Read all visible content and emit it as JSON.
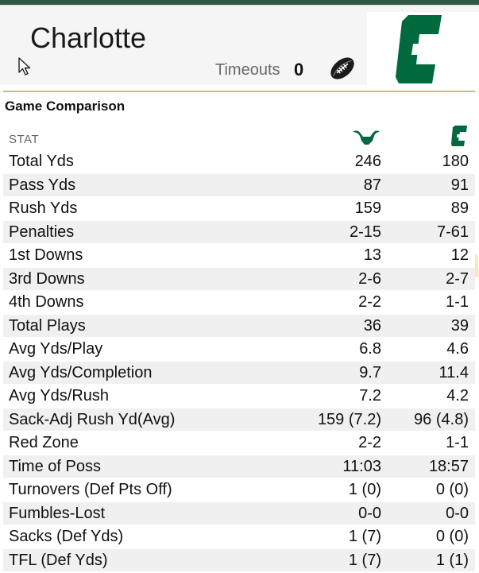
{
  "header": {
    "team_name": "Charlotte",
    "timeouts_label": "Timeouts",
    "timeouts_value": "0"
  },
  "comparison": {
    "title": "Game Comparison",
    "stat_header": "STAT",
    "rows": [
      {
        "label": "Total Yds",
        "usf": "246",
        "clt": "180"
      },
      {
        "label": "Pass Yds",
        "usf": "87",
        "clt": "91"
      },
      {
        "label": "Rush Yds",
        "usf": "159",
        "clt": "89"
      },
      {
        "label": "Penalties",
        "usf": "2-15",
        "clt": "7-61"
      },
      {
        "label": "1st Downs",
        "usf": "13",
        "clt": "12"
      },
      {
        "label": "3rd Downs",
        "usf": "2-6",
        "clt": "2-7"
      },
      {
        "label": "4th Downs",
        "usf": "2-2",
        "clt": "1-1"
      },
      {
        "label": "Total Plays",
        "usf": "36",
        "clt": "39"
      },
      {
        "label": "Avg Yds/Play",
        "usf": "6.8",
        "clt": "4.6"
      },
      {
        "label": "Avg Yds/Completion",
        "usf": "9.7",
        "clt": "11.4"
      },
      {
        "label": "Avg Yds/Rush",
        "usf": "7.2",
        "clt": "4.2"
      },
      {
        "label": "Sack-Adj Rush Yd(Avg)",
        "usf": "159 (7.2)",
        "clt": "96 (4.8)"
      },
      {
        "label": "Red Zone",
        "usf": "2-2",
        "clt": "1-1"
      },
      {
        "label": "Time of Poss",
        "usf": "11:03",
        "clt": "18:57"
      },
      {
        "label": "Turnovers (Def Pts Off)",
        "usf": "1 (0)",
        "clt": "0 (0)"
      },
      {
        "label": "Fumbles-Lost",
        "usf": "0-0",
        "clt": "0-0"
      },
      {
        "label": "Sacks (Def Yds)",
        "usf": "1 (7)",
        "clt": "0 (0)"
      },
      {
        "label": "TFL (Def Yds)",
        "usf": "1 (7)",
        "clt": "1 (1)"
      }
    ]
  },
  "colors": {
    "brand_green": "#00693e",
    "usf_green": "#006747",
    "highlight": "#fbe3b0",
    "gold_rule": "#c9b98a"
  },
  "icons": {
    "cursor": "mouse-pointer-icon",
    "football": "football-icon",
    "usf_logo": "usf-bull-logo-icon",
    "charlotte_logo": "charlotte-c-logo-icon"
  }
}
